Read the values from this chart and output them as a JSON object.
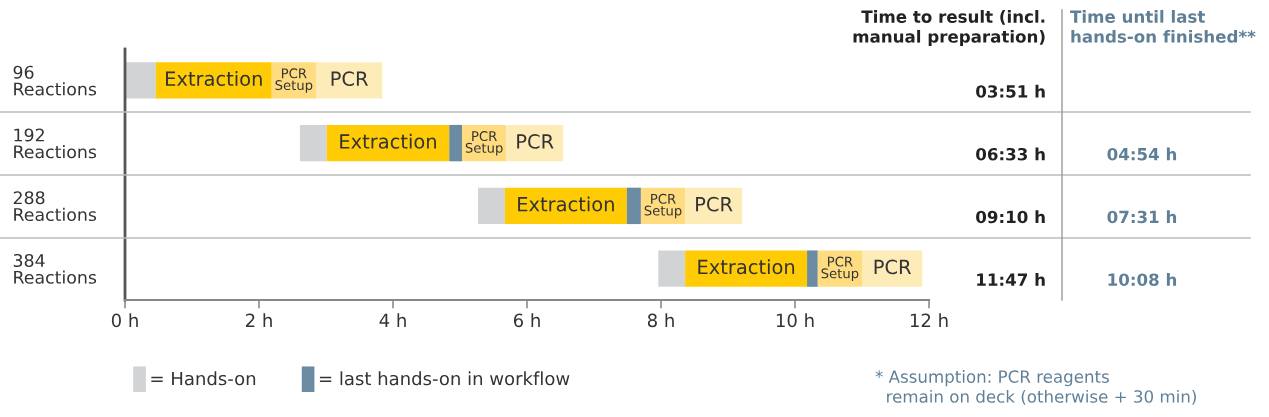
{
  "chart_data": {
    "type": "bar",
    "orientation": "horizontal",
    "categories": [
      "96\nReactions",
      "192\nReactions",
      "288\nReactions",
      "384\nReactions"
    ],
    "series": [
      {
        "name": "= Hands-on",
        "color": "#d1d3d4",
        "base": [
          0,
          2.61,
          5.27,
          7.96
        ],
        "values": [
          0.46,
          0.4,
          0.4,
          0.4
        ]
      },
      {
        "name": "Extraction",
        "color": "#ffcb05",
        "base": [
          0.46,
          3.01,
          5.67,
          8.36
        ],
        "values": [
          1.73,
          1.83,
          1.82,
          1.82
        ]
      },
      {
        "name": "= last hands-on in workflow",
        "color": "#6a8ba1",
        "base": [
          null,
          4.84,
          7.49,
          10.18
        ],
        "values": [
          null,
          0.19,
          0.21,
          0.16
        ]
      },
      {
        "name": "PCR Setup",
        "color": "#ffdc80",
        "base": [
          2.19,
          5.03,
          7.7,
          10.34
        ],
        "values": [
          0.66,
          0.66,
          0.66,
          0.66
        ]
      },
      {
        "name": "PCR",
        "color": "#fdebb8",
        "base": [
          2.85,
          5.69,
          8.36,
          11.0
        ],
        "values": [
          0.99,
          0.85,
          0.85,
          0.9
        ]
      }
    ],
    "xlim": [
      0,
      12
    ],
    "xticks": [
      {
        "value": 0,
        "label": "0 h"
      },
      {
        "value": 2,
        "label": "2 h"
      },
      {
        "value": 4,
        "label": "4 h"
      },
      {
        "value": 6,
        "label": "6 h"
      },
      {
        "value": 8,
        "label": "8 h"
      },
      {
        "value": 10,
        "label": "10 h"
      },
      {
        "value": 12,
        "label": "12 h"
      }
    ],
    "annotations": [
      "Time to result (incl.\nmanual preparation)",
      "Time until last\nhands-on finished**",
      "03:51 h",
      "06:33 h",
      "09:10 h",
      "11:47 h",
      "04:54 h",
      "07:31 h",
      "10:08 h",
      "* Assumption: PCR reagents\n  remain on deck (otherwise + 30 min)"
    ],
    "legend": "bottom left",
    "grid": false
  }
}
